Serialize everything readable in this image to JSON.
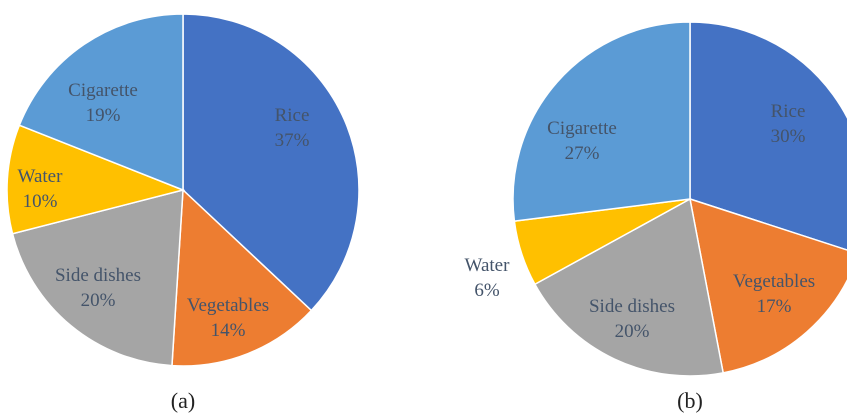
{
  "chart_data": [
    {
      "type": "pie",
      "caption": "(a)",
      "slices": [
        {
          "label": "Rice",
          "percent_label": "37%",
          "value": 37,
          "color": "#4472C4"
        },
        {
          "label": "Vegetables",
          "percent_label": "14%",
          "value": 14,
          "color": "#ED7D31"
        },
        {
          "label": "Side dishes",
          "percent_label": "20%",
          "value": 20,
          "color": "#A5A5A5"
        },
        {
          "label": "Water",
          "percent_label": "10%",
          "value": 10,
          "color": "#FFC000"
        },
        {
          "label": "Cigarette",
          "percent_label": "19%",
          "value": 19,
          "color": "#5B9BD5"
        }
      ]
    },
    {
      "type": "pie",
      "caption": "(b)",
      "slices": [
        {
          "label": "Rice",
          "percent_label": "30%",
          "value": 30,
          "color": "#4472C4"
        },
        {
          "label": "Vegetables",
          "percent_label": "17%",
          "value": 17,
          "color": "#ED7D31"
        },
        {
          "label": "Side dishes",
          "percent_label": "20%",
          "value": 20,
          "color": "#A5A5A5"
        },
        {
          "label": "Water",
          "percent_label": "6%",
          "value": 6,
          "color": "#FFC000"
        },
        {
          "label": "Cigarette",
          "percent_label": "27%",
          "value": 27,
          "color": "#5B9BD5"
        }
      ]
    }
  ],
  "label_colors": {
    "light": "#44546A",
    "dark": "#44546A"
  }
}
